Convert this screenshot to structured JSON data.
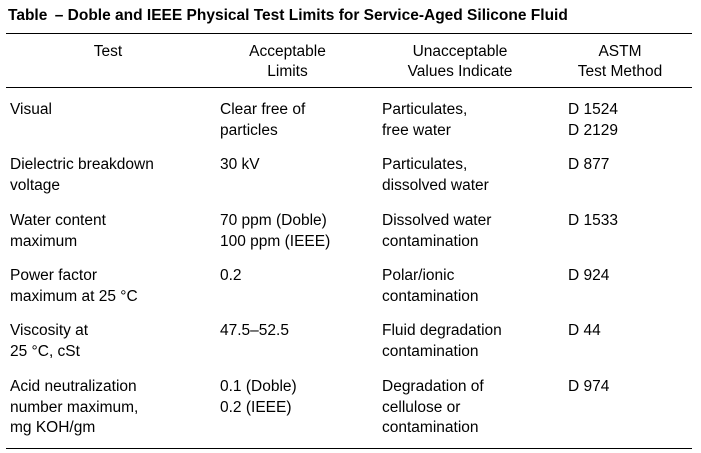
{
  "title": "Table  – Doble and IEEE Physical Test Limits for Service-Aged Silicone Fluid",
  "headers": {
    "test": [
      "Test"
    ],
    "limits": [
      "Acceptable",
      "Limits"
    ],
    "unacceptable": [
      "Unacceptable",
      "Values Indicate"
    ],
    "astm": [
      "ASTM",
      "Test Method"
    ]
  },
  "rows": [
    {
      "test": [
        "Visual"
      ],
      "limits": [
        "Clear free of",
        "particles"
      ],
      "indicate": [
        "Particulates,",
        "free water"
      ],
      "method": [
        "D 1524",
        "D 2129"
      ]
    },
    {
      "test": [
        "Dielectric breakdown",
        "voltage"
      ],
      "limits": [
        "30 kV"
      ],
      "indicate": [
        "Particulates,",
        "dissolved water"
      ],
      "method": [
        "D 877"
      ]
    },
    {
      "test": [
        "Water content",
        "maximum"
      ],
      "limits": [
        "70 ppm (Doble)",
        "100 ppm (IEEE)"
      ],
      "indicate": [
        "Dissolved water",
        "contamination"
      ],
      "method": [
        "D 1533"
      ]
    },
    {
      "test": [
        "Power factor",
        "maximum at 25 °C"
      ],
      "limits": [
        "0.2"
      ],
      "indicate": [
        "Polar/ionic",
        "contamination"
      ],
      "method": [
        "D 924"
      ]
    },
    {
      "test": [
        "Viscosity at",
        "25 °C, cSt"
      ],
      "limits": [
        "47.5–52.5"
      ],
      "indicate": [
        "Fluid degradation",
        "contamination"
      ],
      "method": [
        "D 44"
      ]
    },
    {
      "test": [
        "Acid neutralization",
        "number maximum,",
        "mg KOH/gm"
      ],
      "limits": [
        "0.1 (Doble)",
        "0.2 (IEEE)"
      ],
      "indicate": [
        "Degradation of",
        "cellulose or",
        "contamination"
      ],
      "method": [
        "D 974"
      ]
    }
  ]
}
